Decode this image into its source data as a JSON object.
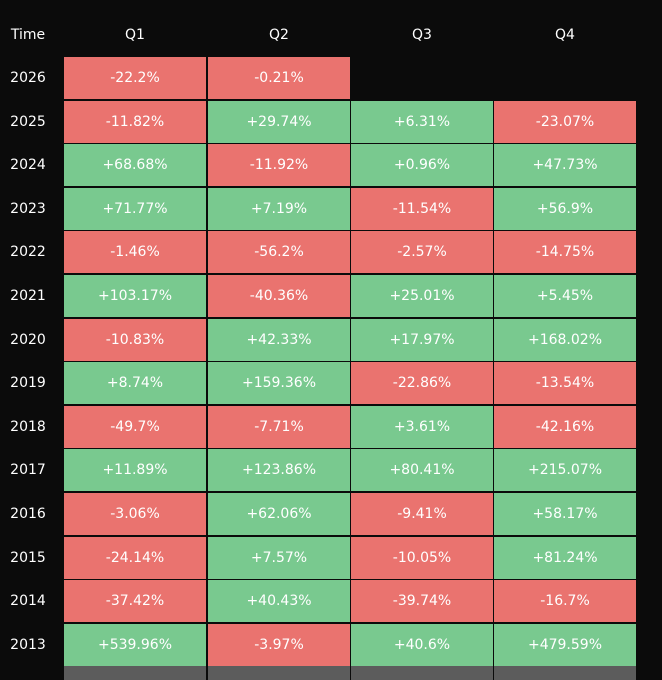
{
  "table": {
    "header": [
      "Time",
      "Q1",
      "Q2",
      "Q3",
      "Q4"
    ],
    "rows": [
      [
        "2026",
        "-22.2%",
        "-0.21%"
      ],
      [
        "2025",
        "-11.82%",
        "+29.74%",
        "+6.31%",
        "-23.07%"
      ],
      [
        "2024",
        "+68.68%",
        "-11.92%",
        "+0.96%",
        "+47.73%"
      ],
      [
        "2023",
        "+71.77%",
        "+7.19%",
        "-11.54%",
        "+56.9%"
      ],
      [
        "2022",
        "-1.46%",
        "-56.2%",
        "-2.57%",
        "-14.75%"
      ],
      [
        "2021",
        "+103.17%",
        "-40.36%",
        "+25.01%",
        "+5.45%"
      ],
      [
        "2020",
        "-10.83%",
        "+42.33%",
        "+17.97%",
        "+168.02%"
      ],
      [
        "2019",
        "+8.74%",
        "+159.36%",
        "-22.86%",
        "-13.54%"
      ],
      [
        "2018",
        "-49.7%",
        "-7.71%",
        "+3.61%",
        "-42.16%"
      ],
      [
        "2017",
        "+11.89%",
        "+123.86%",
        "+80.41%",
        "+215.07%"
      ],
      [
        "2016",
        "-3.06%",
        "+62.06%",
        "-9.41%",
        "+58.17%"
      ],
      [
        "2015",
        "-24.14%",
        "+7.57%",
        "-10.05%",
        "+81.24%"
      ],
      [
        "2014",
        "-37.42%",
        "+40.43%",
        "-39.74%",
        "-16.7%"
      ],
      [
        "2013",
        "+539.96%",
        "-3.97%",
        "+40.6%",
        "+479.59%"
      ]
    ]
  }
}
